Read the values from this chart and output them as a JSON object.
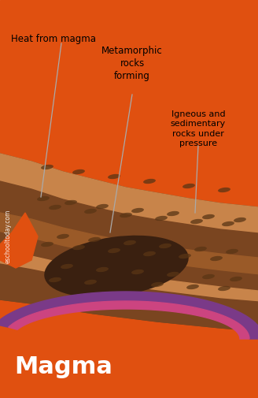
{
  "bg_color": "#ffffff",
  "magma_color": "#e05010",
  "layer_tan_color": "#c8844a",
  "layer_dark_color": "#7a4520",
  "layer_med_color": "#9a5a28",
  "layer_light_color": "#b87040",
  "dark_oval_color": "#3a2010",
  "spot_color": "#5a3515",
  "purple_color": "#7a3a88",
  "pink_color": "#cc4480",
  "label_heat": "Heat from magma",
  "label_meta": "Metamorphic\nrocks\nforming",
  "label_igneous": "Igneous and\nsedimentary\nrocks under\npressure",
  "label_magma": "Magma",
  "label_watermark": "eschooltoday.com",
  "line_color": "#aaaaaa"
}
